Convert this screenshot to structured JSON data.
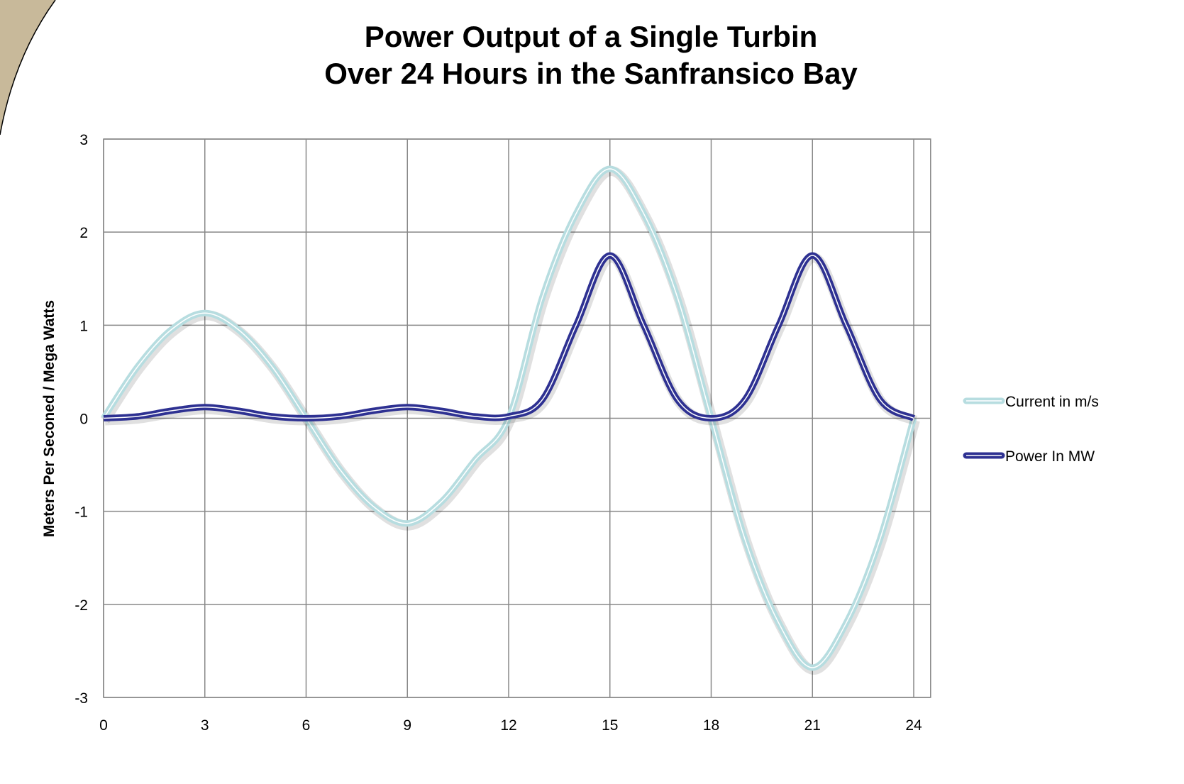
{
  "chart_data": {
    "type": "line",
    "title": [
      "Power Output of a Single Turbin",
      "Over 24 Hours in the Sanfransico Bay"
    ],
    "y_label": "Meters Per Seconed / Mega Watts",
    "x": [
      0,
      1,
      2,
      3,
      4,
      5,
      6,
      7,
      8,
      9,
      10,
      11,
      12,
      13,
      14,
      15,
      16,
      17,
      18,
      19,
      20,
      21,
      22,
      23,
      24
    ],
    "series": [
      {
        "name": "Current in m/s",
        "color": "#b7dde0",
        "values": [
          0,
          0.55,
          0.95,
          1.13,
          0.95,
          0.55,
          0,
          -0.55,
          -0.95,
          -1.13,
          -0.9,
          -0.45,
          0,
          1.3,
          2.2,
          2.68,
          2.2,
          1.3,
          0,
          -1.3,
          -2.2,
          -2.68,
          -2.2,
          -1.3,
          0
        ]
      },
      {
        "name": "Power In MW",
        "color": "#2e3192",
        "values": [
          0,
          0.02,
          0.08,
          0.12,
          0.08,
          0.02,
          0,
          0.02,
          0.08,
          0.12,
          0.08,
          0.02,
          0.02,
          0.2,
          1.0,
          1.75,
          1.0,
          0.2,
          0,
          0.2,
          1.0,
          1.75,
          1.0,
          0.2,
          0
        ]
      }
    ],
    "xlim": [
      0,
      24.5
    ],
    "xticks": [
      0,
      3,
      6,
      9,
      12,
      15,
      18,
      21,
      24
    ],
    "ylim": [
      -3,
      3
    ],
    "yticks": [
      -3,
      -2,
      -1,
      0,
      1,
      2,
      3
    ],
    "grid": true,
    "legend": "right"
  }
}
